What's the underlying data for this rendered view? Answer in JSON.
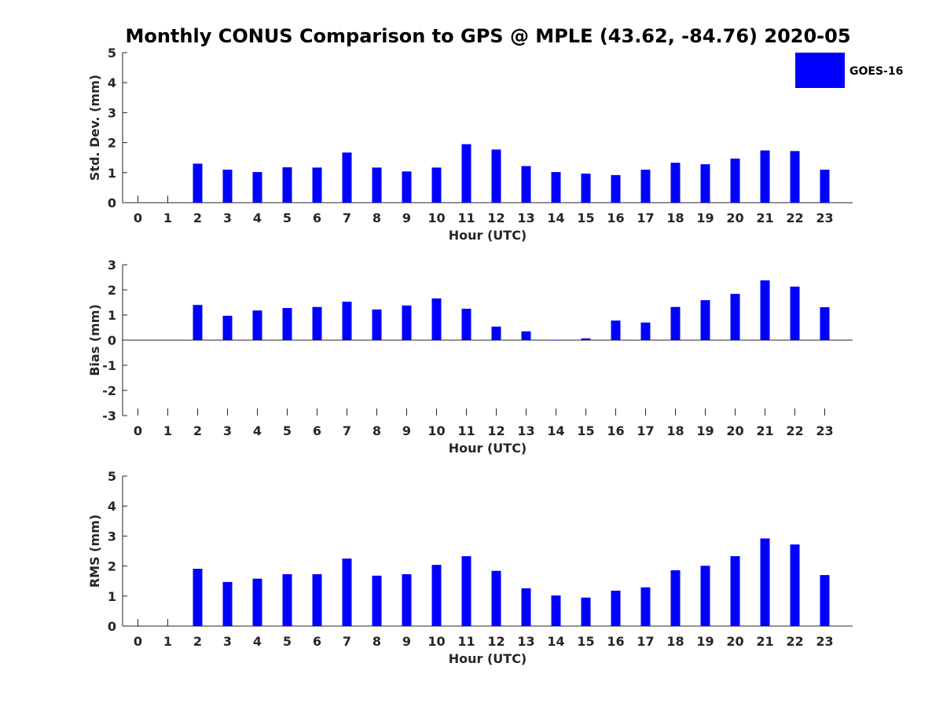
{
  "figure": {
    "title": "Monthly CONUS Comparison to GPS @ MPLE (43.62, -84.76) 2020-05",
    "bar_color": "#0000ff"
  },
  "legend": {
    "label": "GOES-16",
    "color": "#0000ff",
    "placement": "top-right"
  },
  "chart_data": [
    {
      "type": "bar",
      "ylabel": "Std. Dev. (mm)",
      "xlabel": "Hour (UTC)",
      "ylim": [
        0,
        5
      ],
      "yticks": [
        0,
        1,
        2,
        3,
        4,
        5
      ],
      "x": [
        0,
        1,
        2,
        3,
        4,
        5,
        6,
        7,
        8,
        9,
        10,
        11,
        12,
        13,
        14,
        15,
        16,
        17,
        18,
        19,
        20,
        21,
        22,
        23
      ],
      "series": [
        {
          "name": "GOES-16",
          "values": [
            null,
            null,
            1.3,
            1.1,
            1.02,
            1.18,
            1.17,
            1.67,
            1.17,
            1.04,
            1.17,
            1.95,
            1.77,
            1.22,
            1.02,
            0.97,
            0.92,
            1.1,
            1.33,
            1.28,
            1.47,
            1.74,
            1.72,
            1.1
          ]
        }
      ]
    },
    {
      "type": "bar",
      "ylabel": "Bias (mm)",
      "xlabel": "Hour (UTC)",
      "ylim": [
        -3,
        3
      ],
      "yticks": [
        -3,
        -2,
        -1,
        0,
        1,
        2,
        3
      ],
      "x": [
        0,
        1,
        2,
        3,
        4,
        5,
        6,
        7,
        8,
        9,
        10,
        11,
        12,
        13,
        14,
        15,
        16,
        17,
        18,
        19,
        20,
        21,
        22,
        23
      ],
      "series": [
        {
          "name": "GOES-16",
          "values": [
            null,
            null,
            1.4,
            0.97,
            1.18,
            1.28,
            1.32,
            1.53,
            1.22,
            1.38,
            1.66,
            1.25,
            0.54,
            0.35,
            0,
            0.07,
            0.78,
            0.7,
            1.32,
            1.59,
            1.84,
            2.38,
            2.13,
            1.31
          ]
        }
      ]
    },
    {
      "type": "bar",
      "ylabel": "RMS (mm)",
      "xlabel": "Hour (UTC)",
      "ylim": [
        0,
        5
      ],
      "yticks": [
        0,
        1,
        2,
        3,
        4,
        5
      ],
      "x": [
        0,
        1,
        2,
        3,
        4,
        5,
        6,
        7,
        8,
        9,
        10,
        11,
        12,
        13,
        14,
        15,
        16,
        17,
        18,
        19,
        20,
        21,
        22,
        23
      ],
      "series": [
        {
          "name": "GOES-16",
          "values": [
            null,
            null,
            1.91,
            1.47,
            1.58,
            1.73,
            1.73,
            2.25,
            1.68,
            1.73,
            2.04,
            2.33,
            1.84,
            1.26,
            1.02,
            0.95,
            1.18,
            1.29,
            1.86,
            2.01,
            2.33,
            2.92,
            2.72,
            1.7
          ]
        }
      ]
    }
  ]
}
